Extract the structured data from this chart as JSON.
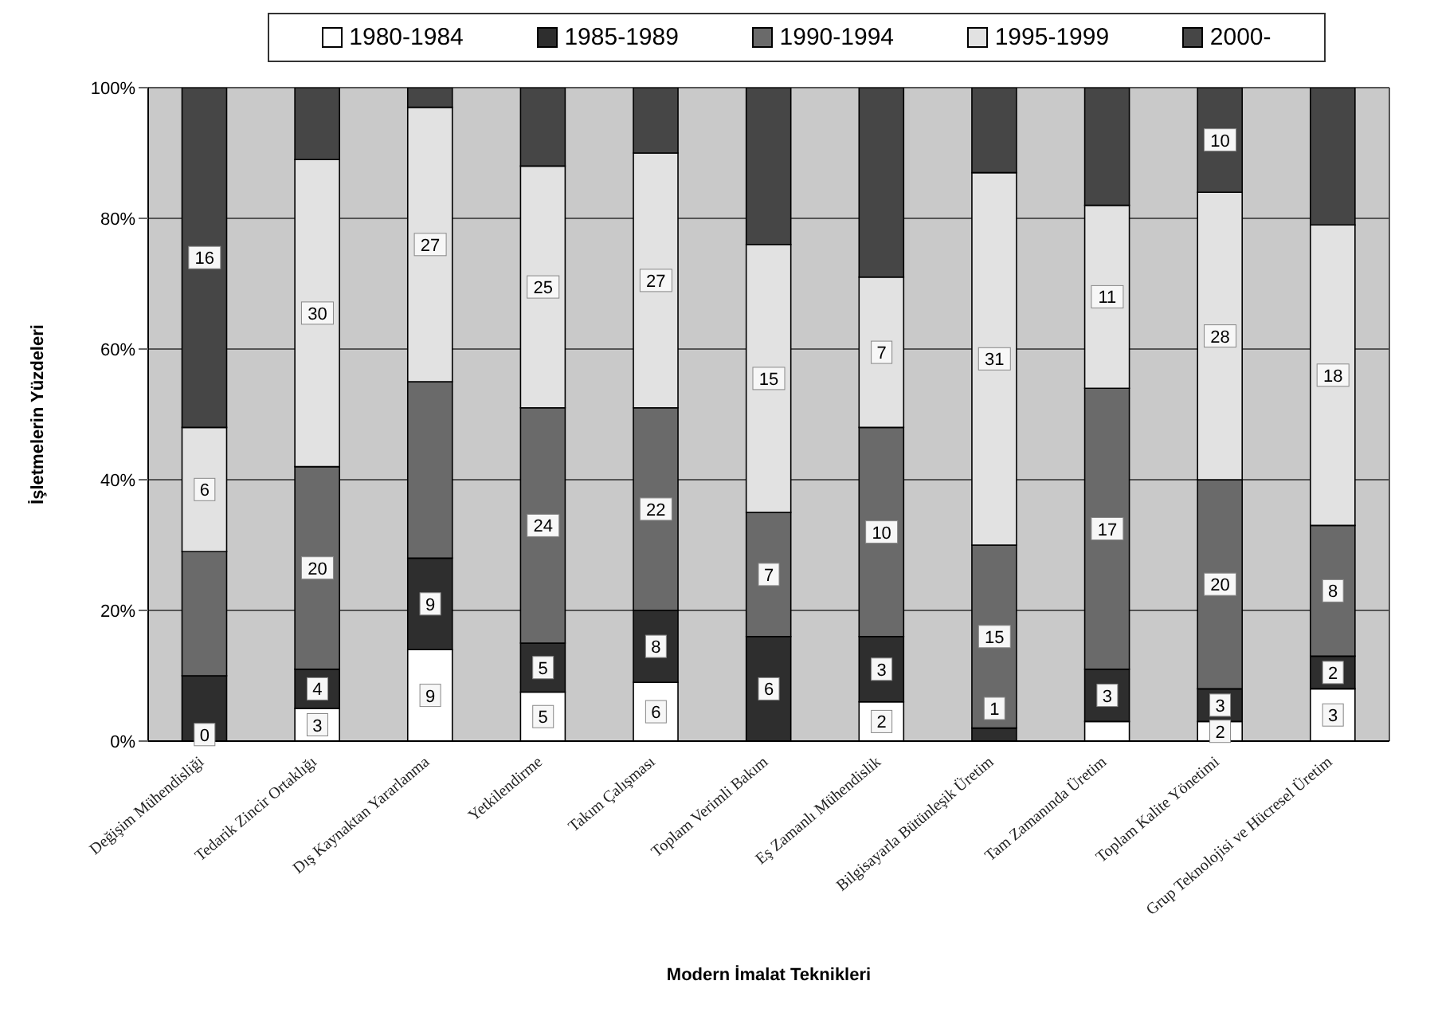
{
  "chart_data": {
    "type": "bar",
    "stacked": true,
    "ylabel": "İşletmelerin Yüzdeleri",
    "xlabel": "Modern İmalat Teknikleri",
    "categories": [
      "Değişim Mühendisliği",
      "Tedarik Zincir Ortaklığı",
      "Dış Kaynaktan Yararlanma",
      "Yetkilendirme",
      "Takım Çalışması",
      "Toplam Verimli Bakım",
      "Eş Zamanlı Mühendislik",
      "Bilgisayarla Bütünleşik Üretim",
      "Tam Zamanında Üretim",
      "Toplam Kalite Yönetimi",
      "Grup Teknolojisi ve Hücresel Üretim"
    ],
    "series": [
      {
        "name": "1980-1984",
        "color": "#ffffff",
        "values": [
          0,
          5,
          14,
          7.5,
          9,
          0,
          6,
          0,
          3,
          3,
          8
        ]
      },
      {
        "name": "1985-1989",
        "color": "#2e2e2e",
        "values": [
          10,
          6,
          14,
          7.5,
          11,
          16,
          10,
          2,
          8,
          5,
          5
        ]
      },
      {
        "name": "1990-1994",
        "color": "#6a6a6a",
        "values": [
          19,
          31,
          27,
          36,
          31,
          19,
          32,
          28,
          43,
          32,
          20
        ]
      },
      {
        "name": "1995-1999",
        "color": "#e2e2e2",
        "values": [
          19,
          47,
          42,
          37,
          39,
          41,
          23,
          57,
          28,
          44,
          46
        ]
      },
      {
        "name": "2000-",
        "color": "#464646",
        "values": [
          52,
          11,
          3,
          12,
          10,
          24,
          29,
          13,
          18,
          16,
          21
        ]
      }
    ],
    "annotations": [
      {
        "text": "0",
        "x": "Değişim Mühendisliği",
        "y": 1
      },
      {
        "text": "6",
        "x": "Değişim Mühendisliği",
        "y": 38.5
      },
      {
        "text": "16",
        "x": "Değişim Mühendisliği",
        "y": 74
      },
      {
        "text": "3",
        "x": "Tedarik Zincir Ortaklığı",
        "y": 2.5
      },
      {
        "text": "4",
        "x": "Tedarik Zincir Ortaklığı",
        "y": 8
      },
      {
        "text": "20",
        "x": "Tedarik Zincir Ortaklığı",
        "y": 26.5
      },
      {
        "text": "30",
        "x": "Tedarik Zincir Ortaklığı",
        "y": 65.5
      },
      {
        "text": "9",
        "x": "Dış Kaynaktan Yararlanma",
        "y": 7
      },
      {
        "text": "9",
        "x": "Dış Kaynaktan Yararlanma",
        "y": 21
      },
      {
        "text": "27",
        "x": "Dış Kaynaktan Yararlanma",
        "y": 76
      },
      {
        "text": "5",
        "x": "Yetkilendirme",
        "y": 3.75
      },
      {
        "text": "5",
        "x": "Yetkilendirme",
        "y": 11.25
      },
      {
        "text": "24",
        "x": "Yetkilendirme",
        "y": 33
      },
      {
        "text": "25",
        "x": "Yetkilendirme",
        "y": 69.5
      },
      {
        "text": "6",
        "x": "Takım Çalışması",
        "y": 4.5
      },
      {
        "text": "8",
        "x": "Takım Çalışması",
        "y": 14.5
      },
      {
        "text": "22",
        "x": "Takım Çalışması",
        "y": 35.5
      },
      {
        "text": "27",
        "x": "Takım Çalışması",
        "y": 70.5
      },
      {
        "text": "6",
        "x": "Toplam Verimli Bakım",
        "y": 8
      },
      {
        "text": "7",
        "x": "Toplam Verimli Bakım",
        "y": 25.5
      },
      {
        "text": "15",
        "x": "Toplam Verimli Bakım",
        "y": 55.5
      },
      {
        "text": "2",
        "x": "Eş Zamanlı Mühendislik",
        "y": 3
      },
      {
        "text": "3",
        "x": "Eş Zamanlı Mühendislik",
        "y": 11
      },
      {
        "text": "10",
        "x": "Eş Zamanlı Mühendislik",
        "y": 32
      },
      {
        "text": "7",
        "x": "Eş Zamanlı Mühendislik",
        "y": 59.5
      },
      {
        "text": "1",
        "x": "Bilgisayarla Bütünleşik Üretim",
        "y": 5
      },
      {
        "text": "15",
        "x": "Bilgisayarla Bütünleşik Üretim",
        "y": 16
      },
      {
        "text": "31",
        "x": "Bilgisayarla Bütünleşik Üretim",
        "y": 58.5
      },
      {
        "text": "3",
        "x": "Tam Zamanında Üretim",
        "y": 7
      },
      {
        "text": "17",
        "x": "Tam Zamanında Üretim",
        "y": 32.5
      },
      {
        "text": "11",
        "x": "Tam Zamanında Üretim",
        "y": 68
      },
      {
        "text": "2",
        "x": "Toplam Kalite Yönetimi",
        "y": 1.5
      },
      {
        "text": "3",
        "x": "Toplam Kalite Yönetimi",
        "y": 5.5
      },
      {
        "text": "20",
        "x": "Toplam Kalite Yönetimi",
        "y": 24
      },
      {
        "text": "28",
        "x": "Toplam Kalite Yönetimi",
        "y": 62
      },
      {
        "text": "10",
        "x": "Toplam Kalite Yönetimi",
        "y": 92
      },
      {
        "text": "3",
        "x": "Grup Teknolojisi ve Hücresel Üretim",
        "y": 4
      },
      {
        "text": "2",
        "x": "Grup Teknolojisi ve Hücresel Üretim",
        "y": 10.5
      },
      {
        "text": "8",
        "x": "Grup Teknolojisi ve Hücresel Üretim",
        "y": 23
      },
      {
        "text": "18",
        "x": "Grup Teknolojisi ve Hücresel Üretim",
        "y": 56
      }
    ],
    "ylim": [
      0,
      100
    ],
    "yticks": [
      {
        "value": 0,
        "label": "0%"
      },
      {
        "value": 20,
        "label": "20%"
      },
      {
        "value": 40,
        "label": "40%"
      },
      {
        "value": 60,
        "label": "60%"
      },
      {
        "value": 80,
        "label": "80%"
      },
      {
        "value": 100,
        "label": "100%"
      }
    ],
    "grid": true,
    "legend": "top"
  }
}
